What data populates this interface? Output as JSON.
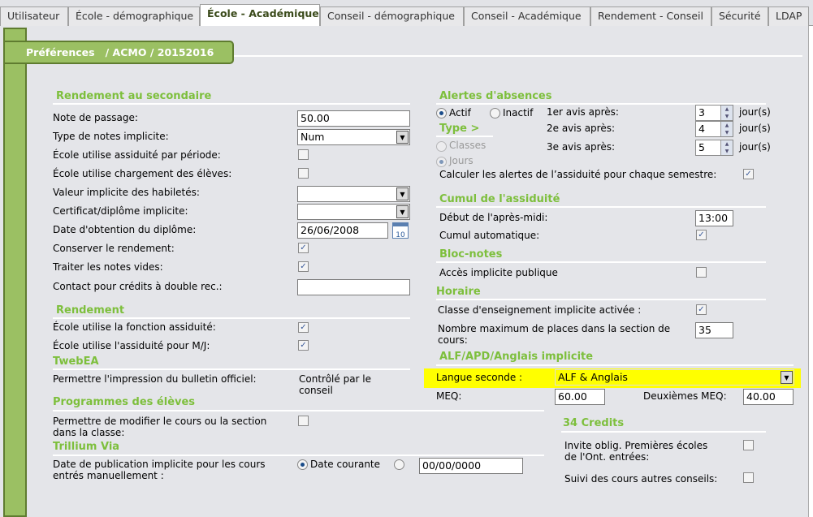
{
  "tabs": [
    "Utilisateur",
    "École - démographique",
    "École - Académique",
    "Conseil - démographique",
    "Conseil - Académique",
    "Rendement - Conseil",
    "Sécurité",
    "LDAP"
  ],
  "active_tab": "École - Académique",
  "banner": "Préférences   / ACMO / 20152016",
  "left": {
    "rendement_secondaire": {
      "title": "Rendement au secondaire",
      "note_passage": {
        "label": "Note de passage:",
        "value": "50.00"
      },
      "type_notes": {
        "label": "Type de notes implicite:",
        "value": "Num"
      },
      "assiduite_periode": {
        "label": "École utilise assiduité par période:",
        "checked": false
      },
      "chargement": {
        "label": "École utilise chargement des élèves:",
        "checked": false
      },
      "habiletes": {
        "label": "Valeur implicite des habiletés:",
        "value": ""
      },
      "certificat": {
        "label": "Certificat/diplôme implicite:",
        "value": ""
      },
      "date_diplome": {
        "label": "Date d'obtention du diplôme:",
        "value": "26/06/2008",
        "icon": "calendar-icon"
      },
      "conserver": {
        "label": "Conserver le rendement:",
        "checked": true
      },
      "notes_vides": {
        "label": "Traiter les notes vides:",
        "checked": true
      },
      "contact": {
        "label": "Contact pour crédits à double rec.:",
        "value": ""
      }
    },
    "rendement": {
      "title": "Rendement",
      "fonction_assiduite": {
        "label": "École utilise la fonction assiduité:",
        "checked": true
      },
      "assiduite_mj": {
        "label": "École utilise l'assiduité pour M/J:",
        "checked": true
      }
    },
    "twebea": {
      "title": "TwebEA",
      "label": "Permettre l'impression du bulletin officiel:",
      "value_line1": "Contrôlé par le",
      "value_line2": "conseil"
    },
    "programmes": {
      "title": "Programmes des élèves",
      "label_line1": "Permettre de modifier le cours ou la section",
      "label_line2": "dans la classe:",
      "checked": false
    },
    "trillium": {
      "title": "Trillium Via",
      "label_line1": "Date de publication implicite pour les cours",
      "label_line2": "entrés manuellement :",
      "option1": "Date courante",
      "option1_selected": true,
      "option2_selected": false,
      "date_value": "00/00/0000"
    }
  },
  "right": {
    "alertes": {
      "title": "Alertes d'absences",
      "actif": "Actif",
      "inactif": "Inactif",
      "actif_selected": true,
      "type_title": "Type >",
      "classes": "Classes",
      "jours": "Jours",
      "avis": [
        {
          "label": "1er avis après:",
          "value": "3",
          "unit": "jour(s)"
        },
        {
          "label": "2e avis après:",
          "value": "4",
          "unit": "jour(s)"
        },
        {
          "label": "3e avis après:",
          "value": "5",
          "unit": "jour(s)"
        }
      ],
      "semestre": {
        "label": "Calculer les alertes de l’assiduité pour chaque semestre:",
        "checked": true
      }
    },
    "cumul": {
      "title": "Cumul de l'assiduité",
      "debut": {
        "label": "Début de l'après-midi:",
        "value": "13:00"
      },
      "auto": {
        "label": "Cumul automatique:",
        "checked": true
      }
    },
    "bloc": {
      "title": "Bloc-notes",
      "acces": {
        "label": "Accès implicite publique",
        "checked": false
      }
    },
    "horaire": {
      "title": "Horaire",
      "classe": {
        "label": "Classe d'enseignement implicite activée :",
        "checked": true
      },
      "max_line1": "Nombre maximum de places dans la section de",
      "max_line2": "cours:",
      "max_value": "35"
    },
    "alf": {
      "title": "ALF/APD/Anglais implicite",
      "langue": {
        "label": "Langue seconde :",
        "value": "ALF & Anglais"
      },
      "meq": {
        "label": "MEQ:",
        "value": "60.00"
      },
      "meq2": {
        "label": "Deuxièmes MEQ:",
        "value": "40.00"
      },
      "highlight_color": "#ffff00"
    },
    "credits": {
      "title": "34 Credits",
      "invite_line1": "Invite oblig. Premières écoles",
      "invite_line2": "de l'Ont. entrées:",
      "invite_checked": false,
      "suivi": {
        "label": "Suivi des cours autres conseils:",
        "checked": false
      }
    }
  },
  "colors": {
    "section_title": "#7dbf3c",
    "nav_green": "#9bc063"
  }
}
